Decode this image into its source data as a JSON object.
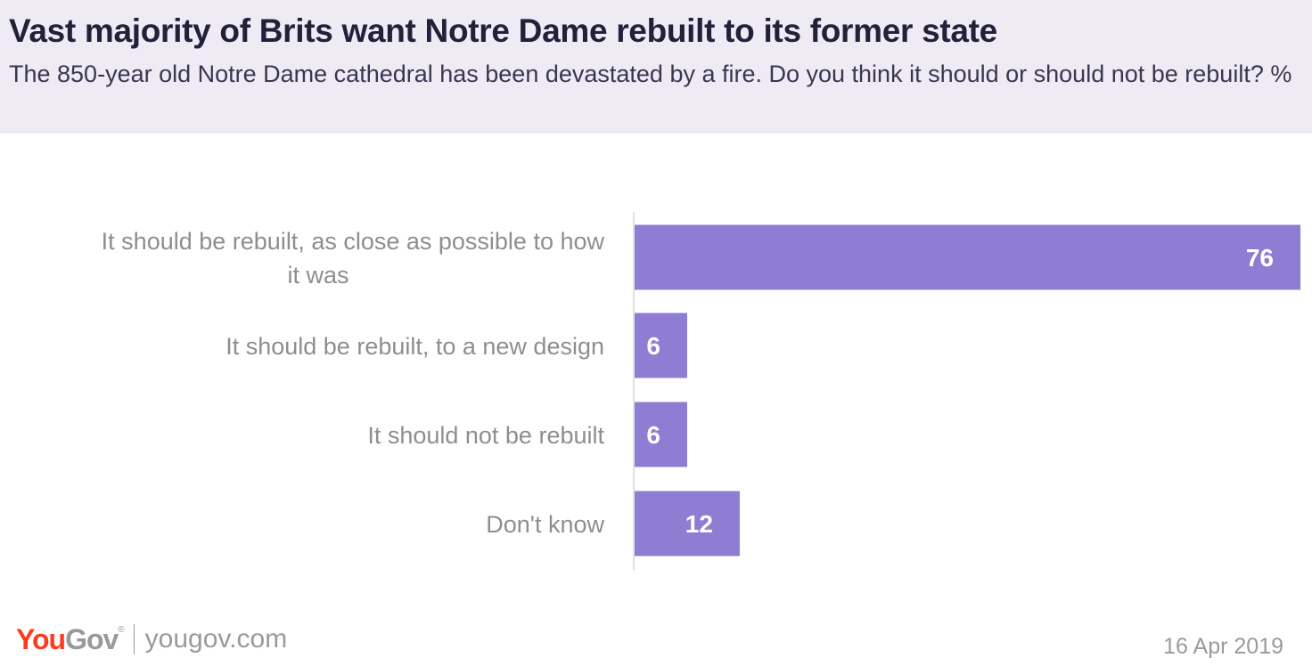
{
  "header": {
    "title": "Vast majority of Brits want Notre Dame rebuilt to its former state",
    "subtitle": "The 850-year old Notre Dame cathedral has been devastated by a fire. Do you think it should or should not be rebuilt? %"
  },
  "chart_data": {
    "type": "bar",
    "orientation": "horizontal",
    "title": "Vast majority of Brits want Notre Dame rebuilt to its former state",
    "subtitle": "The 850-year old Notre Dame cathedral has been devastated by a fire. Do you think it should or should not be rebuilt? %",
    "categories": [
      "It should be rebuilt, as close as possible to how it was",
      "It should be rebuilt, to a new design",
      "It should not be rebuilt",
      "Don't know"
    ],
    "values": [
      76,
      6,
      6,
      12
    ],
    "xlim": [
      0,
      76
    ],
    "grid": false,
    "bar_color": "#8e7dd3",
    "data_labels": true
  },
  "footer": {
    "logo_you": "You",
    "logo_gov": "Gov",
    "logo_mark": "®",
    "site": "yougov.com",
    "date": "16 Apr 2019"
  },
  "colors": {
    "header_bg": "#efebf5",
    "bar": "#8e7dd3",
    "logo_red": "#ff3c1f",
    "muted_text": "#9a9a9a"
  }
}
